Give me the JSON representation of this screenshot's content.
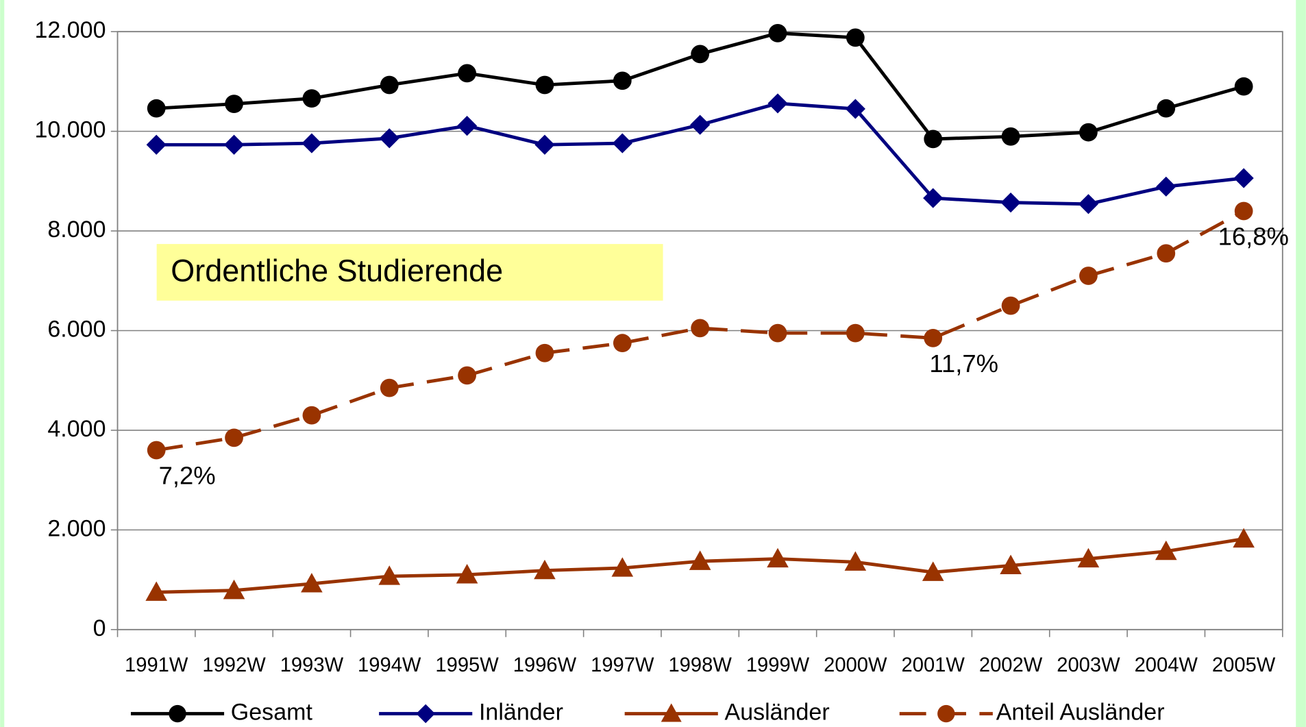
{
  "chart_data": {
    "type": "line",
    "annotation": "Ordentliche Studierende",
    "categories": [
      "1991W",
      "1992W",
      "1993W",
      "1994W",
      "1995W",
      "1996W",
      "1997W",
      "1998W",
      "1999W",
      "2000W",
      "2001W",
      "2002W",
      "2003W",
      "2004W",
      "2005W"
    ],
    "ylim": [
      0,
      12000
    ],
    "yticks": [
      0,
      {
        "value": 2000,
        "label": "2.000"
      },
      {
        "value": 4000,
        "label": "4.000"
      },
      {
        "value": 6000,
        "label": "6.000"
      },
      {
        "value": 8000,
        "label": "8.000"
      },
      {
        "value": 10000,
        "label": "10.000"
      },
      {
        "value": 12000,
        "label": "12.000"
      }
    ],
    "y2lim": [
      0,
      24
    ],
    "grid": true,
    "legend": "bottom",
    "series": [
      {
        "name": "Gesamt",
        "color": "#000000",
        "marker": "circle",
        "values": [
          10460,
          10550,
          10660,
          10930,
          11165,
          10930,
          11015,
          11550,
          11970,
          11880,
          9845,
          9895,
          9980,
          10460,
          10900
        ]
      },
      {
        "name": "Inländer",
        "color": "#000080",
        "marker": "diamond",
        "values": [
          9730,
          9730,
          9760,
          9860,
          10110,
          9730,
          9760,
          10130,
          10560,
          10450,
          8660,
          8570,
          8540,
          8890,
          9060
        ]
      },
      {
        "name": "Ausländer",
        "color": "#993300",
        "marker": "triangle",
        "values": [
          750,
          785,
          920,
          1070,
          1100,
          1185,
          1235,
          1370,
          1420,
          1355,
          1150,
          1285,
          1420,
          1570,
          1820
        ]
      },
      {
        "name": "Anteil Ausländer",
        "color": "#993300",
        "marker": "circle",
        "dashed": true,
        "axis": "y2",
        "values": [
          7.2,
          7.7,
          8.6,
          9.7,
          10.2,
          11.1,
          11.5,
          12.1,
          11.9,
          11.9,
          11.7,
          13.0,
          14.2,
          15.1,
          16.8
        ],
        "value_labels": [
          "7,2%",
          null,
          null,
          null,
          null,
          null,
          null,
          null,
          null,
          null,
          "11,7%",
          null,
          null,
          null,
          "16,8%"
        ]
      }
    ]
  }
}
